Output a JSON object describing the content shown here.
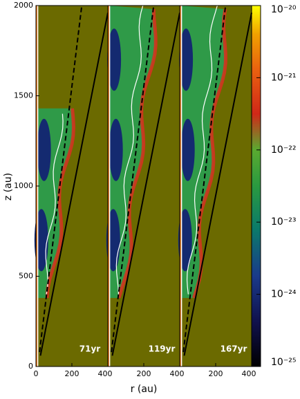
{
  "chart_data": {
    "type": "heatmap",
    "xlabel": "r (au)",
    "ylabel": "z (au)",
    "xlim": [
      0,
      400
    ],
    "ylim": [
      0,
      2000
    ],
    "yticks": [
      0,
      500,
      1000,
      1500,
      2000
    ],
    "panels": [
      {
        "label": "71yr",
        "xticks": [
          0,
          200,
          400
        ]
      },
      {
        "label": "119yr",
        "xticks": [
          200,
          400
        ]
      },
      {
        "label": "167yr",
        "xticks": [
          200,
          400
        ]
      }
    ],
    "colorbar": {
      "log": true,
      "lim": [
        1e-25,
        1e-20
      ],
      "ticks": [
        {
          "value": 1e-25,
          "label": "10⁻²⁵"
        },
        {
          "value": 1e-24,
          "label": "10⁻²⁴"
        },
        {
          "value": 1e-23,
          "label": "10⁻²³"
        },
        {
          "value": 1e-22,
          "label": "10⁻²²"
        },
        {
          "value": 1e-21,
          "label": "10⁻²¹"
        },
        {
          "value": 1e-20,
          "label": "10⁻²⁰"
        }
      ]
    }
  }
}
